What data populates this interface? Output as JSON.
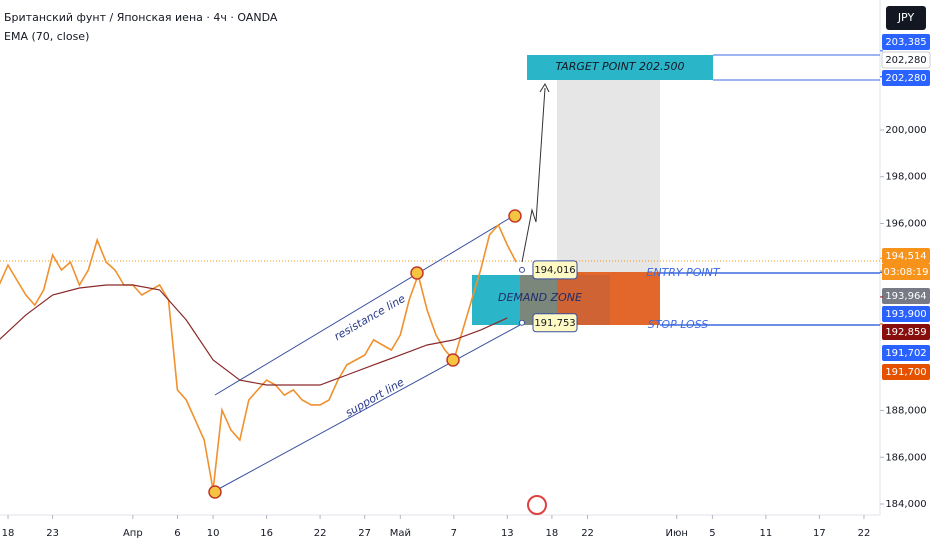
{
  "chart_data": {
    "type": "line",
    "title": "Британский фунт / Японская иена · 4ч · OANDA",
    "currency": "JPY",
    "xlim": [
      -0.9,
      97.8
    ],
    "ylim": [
      183.53,
      205.56
    ],
    "xticks": [
      {
        "value": 0,
        "label": "18"
      },
      {
        "value": 5,
        "label": "23"
      },
      {
        "value": 14,
        "label": "Апр"
      },
      {
        "value": 19,
        "label": "6"
      },
      {
        "value": 23,
        "label": "10"
      },
      {
        "value": 29,
        "label": "16"
      },
      {
        "value": 35,
        "label": "22"
      },
      {
        "value": 40,
        "label": "27"
      },
      {
        "value": 44,
        "label": "Май"
      },
      {
        "value": 50,
        "label": "7"
      },
      {
        "value": 56,
        "label": "13"
      },
      {
        "value": 61,
        "label": "18"
      },
      {
        "value": 65,
        "label": "22"
      },
      {
        "value": 75,
        "label": "Июн"
      },
      {
        "value": 79,
        "label": "5"
      },
      {
        "value": 85,
        "label": "11"
      },
      {
        "value": 91,
        "label": "17"
      },
      {
        "value": 96,
        "label": "22"
      }
    ],
    "yticks": [
      {
        "value": 184,
        "label": "184,000"
      },
      {
        "value": 186,
        "label": "186,000"
      },
      {
        "value": 188,
        "label": "188,000"
      },
      {
        "value": 196,
        "label": "196,000"
      },
      {
        "value": 198,
        "label": "198,000"
      },
      {
        "value": 200,
        "label": "200,000"
      }
    ],
    "series": [
      {
        "color": "#f0912e",
        "x": [
          -1,
          0,
          1,
          2,
          3,
          4,
          5,
          6,
          7,
          8,
          9,
          10,
          11,
          12,
          13,
          14,
          15,
          16,
          17,
          18,
          19,
          20,
          21,
          22,
          23,
          24,
          25,
          26,
          27,
          28,
          29,
          30,
          31,
          32,
          33,
          34,
          35,
          36,
          37,
          38,
          39,
          40,
          41,
          42,
          43,
          44,
          45,
          46,
          47,
          48,
          49,
          50,
          51,
          52,
          53,
          54,
          55,
          56,
          57
        ],
        "values": [
          193.37,
          194.22,
          193.58,
          192.94,
          192.51,
          193.16,
          194.65,
          194.01,
          194.35,
          193.37,
          194.01,
          195.29,
          194.35,
          194.01,
          193.37,
          193.37,
          192.94,
          193.16,
          193.37,
          192.73,
          188.88,
          188.45,
          187.59,
          186.74,
          184.6,
          188.02,
          187.17,
          186.74,
          188.45,
          188.88,
          189.3,
          189.09,
          188.66,
          188.88,
          188.45,
          188.24,
          188.24,
          188.45,
          189.3,
          189.95,
          190.16,
          190.37,
          191.02,
          190.8,
          190.59,
          191.23,
          192.73,
          193.8,
          192.3,
          191.23,
          190.59,
          190.16,
          191.44,
          192.73,
          194.01,
          195.51,
          195.94,
          195.08,
          194.35
        ]
      },
      {
        "name": "EMA (70, close)",
        "color": "#8b2a2a",
        "x": [
          -1,
          2,
          5,
          8,
          11,
          14,
          17,
          20,
          23,
          26,
          29,
          32,
          35,
          38,
          41,
          44,
          47,
          50,
          53,
          56
        ],
        "values": [
          191.02,
          192.09,
          192.94,
          193.24,
          193.37,
          193.37,
          193.16,
          191.87,
          190.16,
          189.3,
          189.09,
          189.09,
          189.09,
          189.52,
          189.95,
          190.37,
          190.8,
          191.02,
          191.44,
          191.96
        ]
      }
    ],
    "annotations": {
      "resistance": "resistance line",
      "support": "support line",
      "demand": "DEMAND ZONE",
      "entry": "ENTRY POINT",
      "stop": "STOP LOSS",
      "target": "TARGET POINT 202.500"
    },
    "callouts": [
      {
        "value": 194.016,
        "label": "194,016"
      },
      {
        "value": 191.753,
        "label": "191,753"
      }
    ],
    "price_tags": [
      {
        "value": 203.385,
        "label": "203,385",
        "color": "#2962ff"
      },
      {
        "value": 202.28,
        "label": "202,280",
        "color": "#ffffff"
      },
      {
        "value": 202.28,
        "label": "202,280",
        "color": "#2962ff"
      },
      {
        "value": 194.514,
        "label": "194,514",
        "color": "#f7931a"
      },
      {
        "value": 193.964,
        "label": "193,964",
        "color": "#787b86"
      },
      {
        "value": 193.9,
        "label": "193,900",
        "color": "#2962ff"
      },
      {
        "value": 192.859,
        "label": "192,859",
        "color": "#880e0e"
      },
      {
        "value": 191.702,
        "label": "191,702",
        "color": "#2962ff"
      },
      {
        "value": 191.7,
        "label": "191,700",
        "color": "#e65100"
      }
    ],
    "countdown": "03:08:19"
  }
}
